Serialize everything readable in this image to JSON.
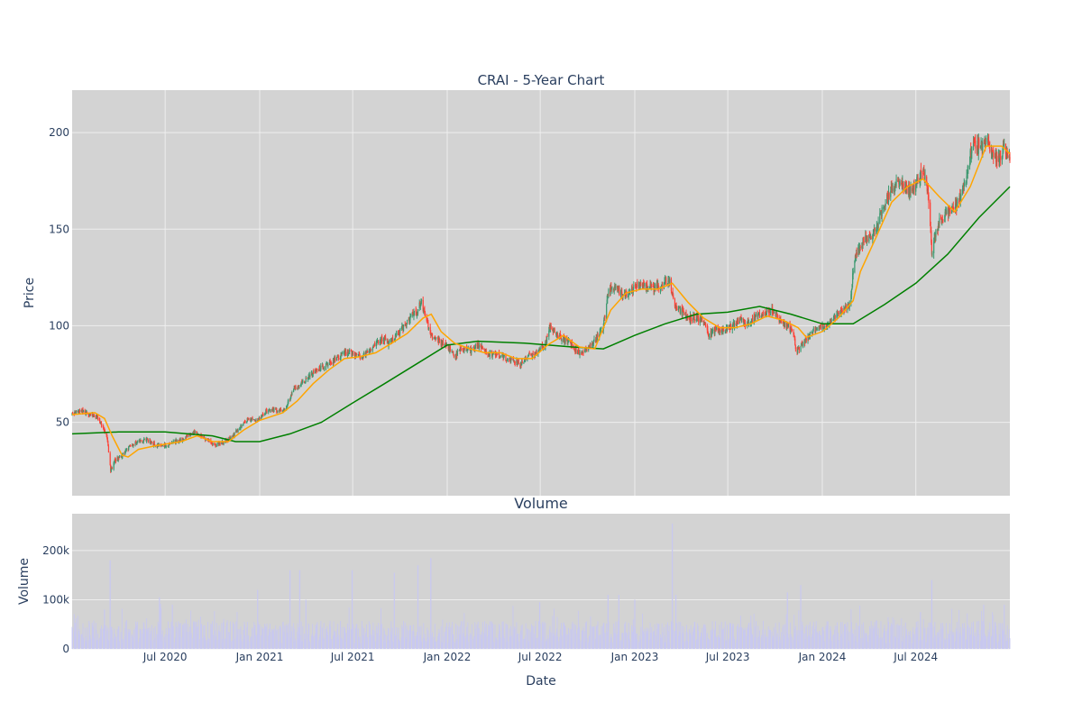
{
  "colors": {
    "plot_bg": "#d3d3d3",
    "grid": "#eeeeee",
    "up": "#3d9970",
    "down": "#ff4136",
    "ma_short": "#ffa500",
    "ma_long": "#008000",
    "volume": "#c8c8f0",
    "text": "#2a3f5f"
  },
  "chart_data": [
    {
      "type": "candlestick",
      "title": "CRAI - 5-Year Chart",
      "xlabel": "",
      "ylabel": "Price",
      "x_range": [
        "2020-01-02",
        "2024-12-31"
      ],
      "ylim": [
        12,
        222
      ],
      "yticks": [
        50,
        100,
        150,
        200
      ],
      "grid": true,
      "price_points": [
        [
          "2020-01-02",
          54
        ],
        [
          "2020-01-20",
          56
        ],
        [
          "2020-02-07",
          54
        ],
        [
          "2020-02-20",
          53
        ],
        [
          "2020-03-01",
          48
        ],
        [
          "2020-03-10",
          42
        ],
        [
          "2020-03-17",
          25
        ],
        [
          "2020-03-25",
          30
        ],
        [
          "2020-04-08",
          33
        ],
        [
          "2020-04-25",
          38
        ],
        [
          "2020-05-10",
          40
        ],
        [
          "2020-05-25",
          41
        ],
        [
          "2020-06-15",
          38
        ],
        [
          "2020-07-01",
          38
        ],
        [
          "2020-07-20",
          40
        ],
        [
          "2020-08-10",
          42
        ],
        [
          "2020-08-25",
          45
        ],
        [
          "2020-09-05",
          43
        ],
        [
          "2020-09-20",
          41
        ],
        [
          "2020-10-05",
          38
        ],
        [
          "2020-10-25",
          40
        ],
        [
          "2020-11-10",
          43
        ],
        [
          "2020-11-25",
          48
        ],
        [
          "2020-12-10",
          52
        ],
        [
          "2020-12-28",
          51
        ],
        [
          "2021-01-15",
          56
        ],
        [
          "2021-02-05",
          56
        ],
        [
          "2021-02-20",
          57
        ],
        [
          "2021-03-10",
          68
        ],
        [
          "2021-03-25",
          70
        ],
        [
          "2021-04-10",
          75
        ],
        [
          "2021-04-25",
          77
        ],
        [
          "2021-05-10",
          80
        ],
        [
          "2021-05-25",
          82
        ],
        [
          "2021-06-10",
          85
        ],
        [
          "2021-06-25",
          86
        ],
        [
          "2021-07-10",
          84
        ],
        [
          "2021-07-25",
          85
        ],
        [
          "2021-08-10",
          90
        ],
        [
          "2021-08-25",
          93
        ],
        [
          "2021-09-10",
          91
        ],
        [
          "2021-09-25",
          95
        ],
        [
          "2021-10-10",
          100
        ],
        [
          "2021-10-25",
          105
        ],
        [
          "2021-11-05",
          108
        ],
        [
          "2021-11-12",
          113
        ],
        [
          "2021-11-20",
          104
        ],
        [
          "2021-12-01",
          95
        ],
        [
          "2021-12-15",
          92
        ],
        [
          "2022-01-01",
          90
        ],
        [
          "2022-01-15",
          84
        ],
        [
          "2022-02-01",
          88
        ],
        [
          "2022-02-15",
          87
        ],
        [
          "2022-03-01",
          90
        ],
        [
          "2022-03-20",
          86
        ],
        [
          "2022-04-10",
          85
        ],
        [
          "2022-04-25",
          83
        ],
        [
          "2022-05-10",
          82
        ],
        [
          "2022-05-25",
          80
        ],
        [
          "2022-06-10",
          85
        ],
        [
          "2022-06-25",
          86
        ],
        [
          "2022-07-10",
          90
        ],
        [
          "2022-07-20",
          100
        ],
        [
          "2022-08-01",
          96
        ],
        [
          "2022-08-15",
          93
        ],
        [
          "2022-09-01",
          90
        ],
        [
          "2022-09-15",
          85
        ],
        [
          "2022-10-01",
          88
        ],
        [
          "2022-10-15",
          92
        ],
        [
          "2022-11-01",
          100
        ],
        [
          "2022-11-10",
          118
        ],
        [
          "2022-11-25",
          120
        ],
        [
          "2022-12-10",
          115
        ],
        [
          "2022-12-25",
          118
        ],
        [
          "2023-01-10",
          122
        ],
        [
          "2023-01-25",
          120
        ],
        [
          "2023-02-10",
          119
        ],
        [
          "2023-02-25",
          122
        ],
        [
          "2023-03-10",
          124
        ],
        [
          "2023-03-20",
          110
        ],
        [
          "2023-04-01",
          107
        ],
        [
          "2023-04-15",
          104
        ],
        [
          "2023-05-01",
          104
        ],
        [
          "2023-05-15",
          102
        ],
        [
          "2023-05-25",
          95
        ],
        [
          "2023-06-10",
          98
        ],
        [
          "2023-06-25",
          98
        ],
        [
          "2023-07-10",
          100
        ],
        [
          "2023-07-25",
          103
        ],
        [
          "2023-08-10",
          101
        ],
        [
          "2023-08-25",
          105
        ],
        [
          "2023-09-10",
          107
        ],
        [
          "2023-09-25",
          108
        ],
        [
          "2023-10-10",
          103
        ],
        [
          "2023-10-25",
          100
        ],
        [
          "2023-11-05",
          97
        ],
        [
          "2023-11-12",
          86
        ],
        [
          "2023-11-25",
          92
        ],
        [
          "2023-12-10",
          96
        ],
        [
          "2023-12-25",
          100
        ],
        [
          "2024-01-10",
          100
        ],
        [
          "2024-01-25",
          105
        ],
        [
          "2024-02-10",
          108
        ],
        [
          "2024-02-25",
          112
        ],
        [
          "2024-03-01",
          130
        ],
        [
          "2024-03-10",
          140
        ],
        [
          "2024-03-25",
          145
        ],
        [
          "2024-04-10",
          148
        ],
        [
          "2024-04-25",
          158
        ],
        [
          "2024-05-10",
          168
        ],
        [
          "2024-05-25",
          174
        ],
        [
          "2024-06-10",
          172
        ],
        [
          "2024-06-25",
          170
        ],
        [
          "2024-07-05",
          176
        ],
        [
          "2024-07-15",
          180
        ],
        [
          "2024-07-25",
          170
        ],
        [
          "2024-08-01",
          138
        ],
        [
          "2024-08-10",
          150
        ],
        [
          "2024-08-25",
          158
        ],
        [
          "2024-09-10",
          160
        ],
        [
          "2024-09-25",
          165
        ],
        [
          "2024-10-05",
          173
        ],
        [
          "2024-10-15",
          188
        ],
        [
          "2024-10-25",
          195
        ],
        [
          "2024-11-05",
          192
        ],
        [
          "2024-11-15",
          197
        ],
        [
          "2024-11-25",
          190
        ],
        [
          "2024-12-10",
          186
        ],
        [
          "2024-12-20",
          192
        ],
        [
          "2024-12-31",
          186
        ]
      ],
      "ma_short": [
        [
          "2020-01-02",
          54
        ],
        [
          "2020-02-15",
          55
        ],
        [
          "2020-03-05",
          52
        ],
        [
          "2020-03-20",
          43
        ],
        [
          "2020-04-08",
          33
        ],
        [
          "2020-04-20",
          32
        ],
        [
          "2020-05-10",
          36
        ],
        [
          "2020-06-15",
          38
        ],
        [
          "2020-08-01",
          40
        ],
        [
          "2020-09-01",
          43
        ],
        [
          "2020-10-01",
          40
        ],
        [
          "2020-11-01",
          40
        ],
        [
          "2020-12-01",
          46
        ],
        [
          "2021-01-01",
          51
        ],
        [
          "2021-02-15",
          55
        ],
        [
          "2021-03-15",
          61
        ],
        [
          "2021-04-15",
          70
        ],
        [
          "2021-05-15",
          77
        ],
        [
          "2021-06-15",
          83
        ],
        [
          "2021-07-15",
          84
        ],
        [
          "2021-08-15",
          86
        ],
        [
          "2021-09-15",
          91
        ],
        [
          "2021-10-15",
          96
        ],
        [
          "2021-11-15",
          104
        ],
        [
          "2021-12-01",
          106
        ],
        [
          "2021-12-20",
          97
        ],
        [
          "2022-01-15",
          91
        ],
        [
          "2022-02-15",
          88
        ],
        [
          "2022-03-15",
          86
        ],
        [
          "2022-04-15",
          86
        ],
        [
          "2022-05-15",
          83
        ],
        [
          "2022-06-15",
          83
        ],
        [
          "2022-07-15",
          90
        ],
        [
          "2022-08-15",
          95
        ],
        [
          "2022-09-15",
          89
        ],
        [
          "2022-10-15",
          88
        ],
        [
          "2022-11-15",
          108
        ],
        [
          "2022-12-15",
          117
        ],
        [
          "2023-01-15",
          119
        ],
        [
          "2023-02-15",
          119
        ],
        [
          "2023-03-15",
          122
        ],
        [
          "2023-04-15",
          112
        ],
        [
          "2023-05-15",
          104
        ],
        [
          "2023-06-15",
          99
        ],
        [
          "2023-07-15",
          99
        ],
        [
          "2023-08-15",
          101
        ],
        [
          "2023-09-15",
          105
        ],
        [
          "2023-10-15",
          103
        ],
        [
          "2023-11-15",
          99
        ],
        [
          "2023-12-01",
          94
        ],
        [
          "2024-01-01",
          97
        ],
        [
          "2024-02-01",
          104
        ],
        [
          "2024-03-01",
          113
        ],
        [
          "2024-03-15",
          128
        ],
        [
          "2024-04-15",
          146
        ],
        [
          "2024-05-15",
          164
        ],
        [
          "2024-06-15",
          172
        ],
        [
          "2024-07-15",
          176
        ],
        [
          "2024-08-15",
          167
        ],
        [
          "2024-09-15",
          159
        ],
        [
          "2024-10-15",
          172
        ],
        [
          "2024-11-15",
          193
        ],
        [
          "2024-12-15",
          193
        ],
        [
          "2024-12-31",
          189
        ]
      ],
      "ma_long": [
        [
          "2020-01-02",
          44
        ],
        [
          "2020-04-01",
          45
        ],
        [
          "2020-07-01",
          45
        ],
        [
          "2020-10-01",
          43
        ],
        [
          "2020-11-15",
          40
        ],
        [
          "2021-01-01",
          40
        ],
        [
          "2021-03-01",
          44
        ],
        [
          "2021-05-01",
          50
        ],
        [
          "2021-07-01",
          60
        ],
        [
          "2021-09-01",
          70
        ],
        [
          "2021-11-01",
          80
        ],
        [
          "2022-01-01",
          90
        ],
        [
          "2022-03-01",
          92
        ],
        [
          "2022-06-01",
          91
        ],
        [
          "2022-09-01",
          89
        ],
        [
          "2022-11-01",
          88
        ],
        [
          "2023-01-01",
          95
        ],
        [
          "2023-03-01",
          101
        ],
        [
          "2023-05-01",
          106
        ],
        [
          "2023-07-01",
          107
        ],
        [
          "2023-09-01",
          110
        ],
        [
          "2023-11-01",
          106
        ],
        [
          "2024-01-01",
          101
        ],
        [
          "2024-03-01",
          101
        ],
        [
          "2024-05-01",
          111
        ],
        [
          "2024-07-01",
          122
        ],
        [
          "2024-09-01",
          137
        ],
        [
          "2024-11-01",
          156
        ],
        [
          "2024-12-31",
          172
        ]
      ]
    },
    {
      "type": "bar",
      "title": "Volume",
      "xlabel": "Date",
      "ylabel": "Volume",
      "ylim": [
        0,
        275000
      ],
      "yticks": [
        0,
        100000,
        200000
      ],
      "ytick_labels": [
        "0",
        "100k",
        "200k"
      ],
      "xticks": [
        "2020-07-01",
        "2021-01-01",
        "2021-07-01",
        "2022-01-01",
        "2022-07-01",
        "2023-01-01",
        "2023-07-01",
        "2024-01-01",
        "2024-07-01"
      ],
      "xtick_labels": [
        "Jul 2020",
        "Jan 2021",
        "Jul 2021",
        "Jan 2022",
        "Jul 2022",
        "Jan 2023",
        "Jul 2023",
        "Jan 2024",
        "Jul 2024"
      ],
      "spikes": [
        [
          "2020-03-16",
          180000
        ],
        [
          "2020-03-05",
          80000
        ],
        [
          "2020-06-20",
          105000
        ],
        [
          "2020-07-15",
          90000
        ],
        [
          "2020-12-28",
          120000
        ],
        [
          "2021-03-01",
          160000
        ],
        [
          "2021-03-20",
          160000
        ],
        [
          "2021-04-01",
          100000
        ],
        [
          "2021-06-30",
          160000
        ],
        [
          "2021-09-20",
          155000
        ],
        [
          "2021-11-05",
          170000
        ],
        [
          "2021-11-30",
          185000
        ],
        [
          "2022-06-30",
          95000
        ],
        [
          "2022-11-10",
          110000
        ],
        [
          "2022-12-01",
          110000
        ],
        [
          "2023-01-01",
          100000
        ],
        [
          "2023-03-15",
          255000
        ],
        [
          "2023-03-22",
          110000
        ],
        [
          "2023-10-25",
          115000
        ],
        [
          "2023-11-20",
          130000
        ],
        [
          "2024-08-01",
          140000
        ],
        [
          "2024-07-10",
          75000
        ],
        [
          "2024-11-10",
          90000
        ],
        [
          "2024-12-20",
          90000
        ]
      ]
    }
  ]
}
